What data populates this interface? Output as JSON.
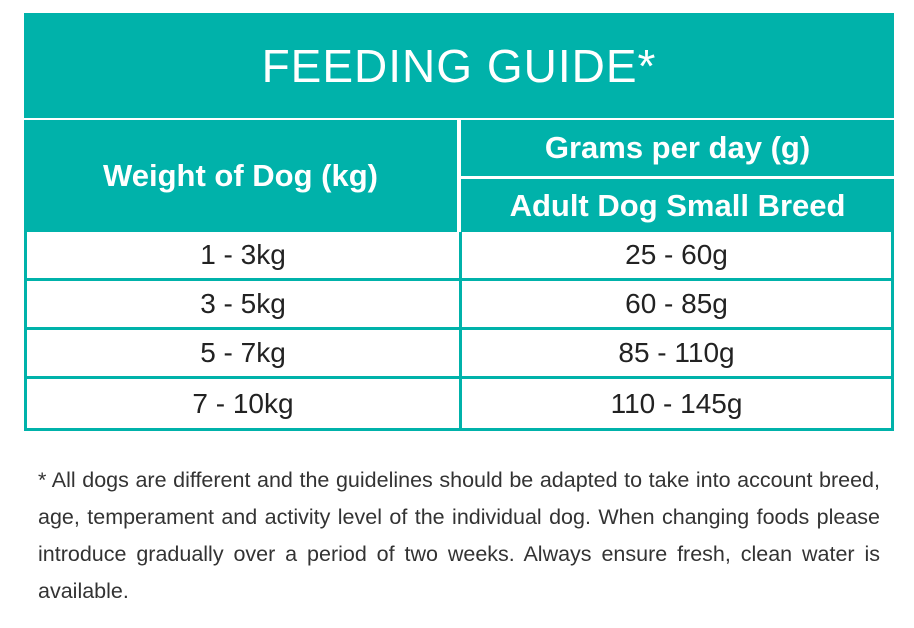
{
  "title": "FEEDING GUIDE*",
  "headers": {
    "weight": "Weight of Dog (kg)",
    "grams": "Grams per day (g)",
    "breed": "Adult Dog Small Breed"
  },
  "rows": [
    {
      "weight": "1 - 3kg",
      "grams": "25 - 60g"
    },
    {
      "weight": "3 - 5kg",
      "grams": "60 - 85g"
    },
    {
      "weight": "5 - 7kg",
      "grams": "85 - 110g"
    },
    {
      "weight": "7 - 10kg",
      "grams": "110 - 145g"
    }
  ],
  "footnote": "* All dogs are different and the guidelines should be adapted to take into account breed, age, temperament and activity level of the individual dog. When changing foods please introduce gradually over a period of two weeks. Always ensure fresh, clean water is available.",
  "colors": {
    "accent": "#00b2aa"
  }
}
